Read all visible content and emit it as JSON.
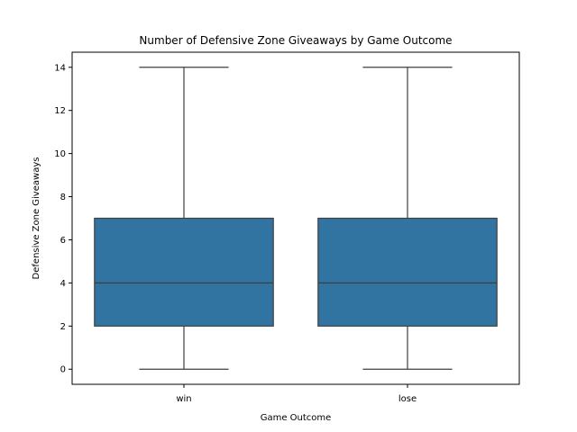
{
  "chart_data": {
    "type": "box",
    "title": "Number of Defensive Zone Giveaways by Game Outcome",
    "xlabel": "Game Outcome",
    "ylabel": "Defensive Zone Giveaways",
    "categories": [
      "win",
      "lose"
    ],
    "boxes": [
      {
        "category": "win",
        "min": 0,
        "q1": 2,
        "median": 4,
        "q3": 7,
        "max": 14
      },
      {
        "category": "lose",
        "min": 0,
        "q1": 2,
        "median": 4,
        "q3": 7,
        "max": 14
      }
    ],
    "yticks": [
      0,
      2,
      4,
      6,
      8,
      10,
      12,
      14
    ],
    "ylim": [
      -0.7,
      14.7
    ],
    "grid": false,
    "box_color": "#3274a1",
    "line_color": "#3f3f3f"
  }
}
